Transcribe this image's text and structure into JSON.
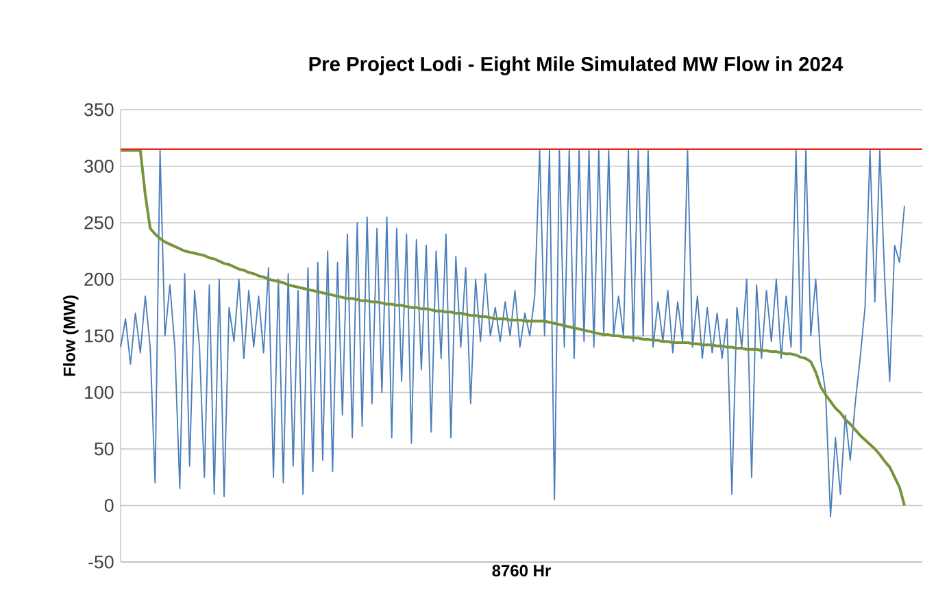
{
  "chart_data": {
    "type": "line",
    "title": "Pre Project Lodi - Eight Mile Simulated MW Flow in 2024",
    "xlabel": "8760 Hr",
    "ylabel": "Flow (MW)",
    "categories": [
      null,
      null,
      null,
      null,
      null,
      null,
      null,
      null,
      null,
      null,
      null,
      null,
      null,
      null,
      null,
      null,
      null,
      null,
      null,
      null,
      null,
      null,
      null,
      null,
      null,
      null,
      null,
      null,
      null,
      null,
      null,
      null,
      null,
      null,
      null,
      null,
      null,
      null,
      null,
      null,
      null,
      null,
      null,
      null,
      null,
      null,
      null,
      null,
      null,
      null,
      null,
      null,
      null,
      null,
      null,
      null,
      null,
      null,
      null,
      null,
      null,
      null,
      null,
      null,
      null,
      null,
      null,
      null,
      null,
      null,
      null,
      null,
      null,
      null,
      null,
      null,
      null,
      null,
      null,
      null,
      null,
      null,
      null,
      null,
      null,
      null,
      null,
      null,
      null,
      null,
      null,
      null,
      null,
      null,
      null,
      null,
      null,
      null,
      null,
      null,
      null,
      null,
      null,
      null,
      null,
      null,
      null,
      null,
      null,
      null,
      null,
      null,
      null,
      null,
      null,
      null,
      null,
      null,
      null,
      null,
      null,
      null,
      null,
      null,
      null,
      null,
      null,
      null,
      null,
      null,
      null,
      null,
      null,
      null,
      null,
      null,
      null,
      null,
      null,
      null,
      null,
      null,
      null,
      null,
      null,
      null,
      null,
      null,
      null,
      null,
      null,
      null,
      null,
      null,
      null,
      null,
      null,
      null,
      null,
      null
    ],
    "ylim": [
      -50,
      350
    ],
    "yticks": [
      -50,
      0,
      50,
      100,
      150,
      200,
      250,
      300,
      350
    ],
    "grid": "y",
    "tick_labels": "y",
    "ref_lines": [
      {
        "axis": "y",
        "value": 315,
        "color": "#e8251f"
      }
    ],
    "series": [
      {
        "color": "#4a7ebb",
        "values": [
          140,
          165,
          125,
          170,
          135,
          185,
          140,
          20,
          314,
          150,
          195,
          140,
          15,
          205,
          35,
          190,
          140,
          25,
          195,
          10,
          200,
          8,
          175,
          145,
          200,
          130,
          190,
          140,
          185,
          135,
          210,
          25,
          200,
          20,
          205,
          35,
          190,
          10,
          210,
          30,
          215,
          40,
          225,
          30,
          215,
          80,
          240,
          60,
          250,
          70,
          255,
          90,
          245,
          100,
          255,
          60,
          245,
          110,
          240,
          55,
          235,
          120,
          230,
          65,
          225,
          130,
          240,
          60,
          220,
          140,
          210,
          90,
          200,
          145,
          205,
          150,
          175,
          145,
          180,
          150,
          190,
          140,
          170,
          150,
          185,
          314,
          150,
          314,
          5,
          314,
          140,
          314,
          130,
          314,
          145,
          314,
          140,
          314,
          150,
          314,
          150,
          185,
          150,
          314,
          145,
          314,
          150,
          314,
          140,
          180,
          145,
          190,
          135,
          180,
          145,
          314,
          140,
          185,
          130,
          175,
          135,
          170,
          130,
          165,
          10,
          175,
          140,
          200,
          25,
          195,
          130,
          190,
          145,
          200,
          130,
          185,
          140,
          314,
          135,
          314,
          150,
          200,
          130,
          100,
          -10,
          60,
          10,
          80,
          40,
          90,
          130,
          175,
          314,
          180,
          314,
          200,
          110,
          230,
          215,
          265
        ]
      },
      {
        "color": "#77933c",
        "values": [
          314,
          314,
          314,
          314,
          314,
          275,
          245,
          240,
          236,
          233,
          231,
          229,
          227,
          225,
          224,
          223,
          222,
          221,
          219,
          218,
          216,
          214,
          213,
          211,
          209,
          208,
          206,
          205,
          203,
          202,
          200,
          199,
          198,
          197,
          195,
          194,
          193,
          192,
          191,
          190,
          189,
          188,
          187,
          186,
          185,
          184,
          183,
          183,
          182,
          181,
          181,
          180,
          180,
          179,
          178,
          178,
          177,
          177,
          176,
          175,
          175,
          174,
          174,
          173,
          172,
          172,
          171,
          171,
          170,
          170,
          169,
          168,
          168,
          167,
          167,
          166,
          165,
          165,
          165,
          164,
          164,
          164,
          163,
          163,
          163,
          163,
          163,
          162,
          161,
          160,
          159,
          158,
          157,
          156,
          155,
          154,
          153,
          152,
          151,
          151,
          150,
          150,
          149,
          149,
          148,
          148,
          147,
          147,
          146,
          146,
          145,
          145,
          144,
          144,
          144,
          144,
          143,
          143,
          142,
          142,
          142,
          141,
          141,
          140,
          140,
          139,
          139,
          138,
          138,
          138,
          137,
          137,
          136,
          136,
          135,
          134,
          134,
          133,
          131,
          130,
          127,
          118,
          105,
          98,
          92,
          86,
          82,
          76,
          72,
          67,
          62,
          58,
          54,
          50,
          45,
          39,
          34,
          25,
          16,
          0
        ]
      }
    ]
  }
}
